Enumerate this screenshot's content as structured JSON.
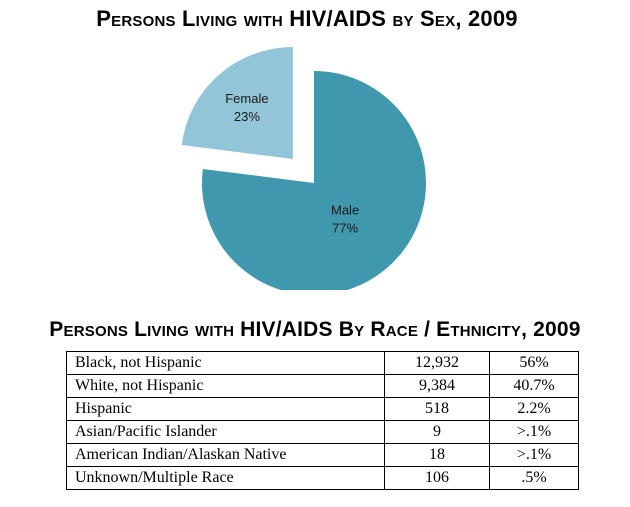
{
  "chart_data": [
    {
      "type": "pie",
      "title": "Persons Living with HIV/AIDS by Sex, 2009",
      "slices": [
        {
          "label": "Male",
          "value": 77,
          "value_label": "77%",
          "color": "#3f98ae",
          "exploded": false
        },
        {
          "label": "Female",
          "value": 23,
          "value_label": "23%",
          "color": "#92c5d8",
          "exploded": true
        }
      ],
      "legend": "none"
    },
    {
      "type": "table",
      "title": "Persons Living with HIV/AIDS By Race / Ethnicity, 2009",
      "rows": [
        [
          "Black, not Hispanic",
          "12,932",
          "56%"
        ],
        [
          "White, not Hispanic",
          "9,384",
          "40.7%"
        ],
        [
          "Hispanic",
          "518",
          "2.2%"
        ],
        [
          "Asian/Pacific Islander",
          "9",
          ">.1%"
        ],
        [
          "American Indian/Alaskan Native",
          "18",
          ">.1%"
        ],
        [
          "Unknown/Multiple Race",
          "106",
          ".5%"
        ]
      ]
    }
  ]
}
